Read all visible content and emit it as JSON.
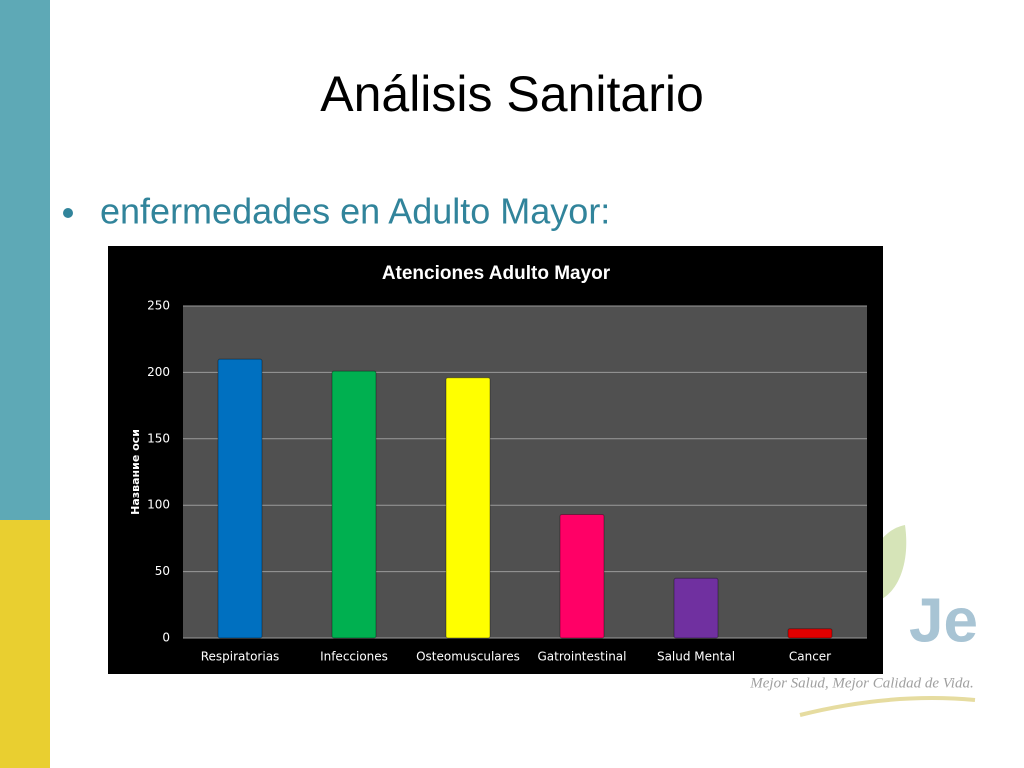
{
  "slide_title": "Análisis Sanitario",
  "bullet": "enfermedades en Adulto Mayor:",
  "logo": {
    "text": "Je",
    "tagline": "Mejor Salud, Mejor Calidad de Vida."
  },
  "chart_data": {
    "type": "bar",
    "title": "Atenciones Adulto Mayor",
    "y_label": "Название оси",
    "categories": [
      "Respiratorias",
      "Infecciones",
      "Osteomusculares",
      "Gatrointestinal",
      "Salud Mental",
      "Cancer"
    ],
    "values": [
      210,
      201,
      196,
      93,
      45,
      7
    ],
    "colors": [
      "#0070c0",
      "#00b050",
      "#ffff00",
      "#ff0066",
      "#7030a0",
      "#e00000"
    ],
    "ylim": [
      0,
      250
    ],
    "yticks": [
      0,
      50,
      100,
      150,
      200,
      250
    ],
    "grid": true
  }
}
